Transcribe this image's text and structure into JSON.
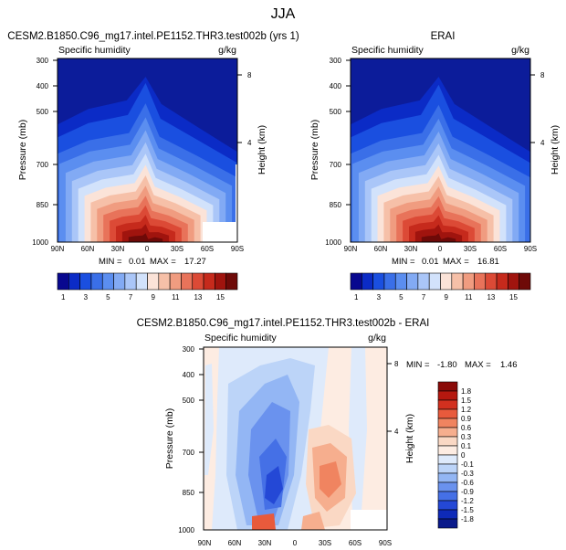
{
  "figure_title": "JJA",
  "chart_data": [
    {
      "type": "contour",
      "title": "CESM2.B1850.C96_mg17.intel.PE1152.THR3.test002b (yrs 1)",
      "left_label": "Specific humidity",
      "units": "g/kg",
      "ylabel": "Pressure (mb)",
      "ylabel_right": "Height (km)",
      "x_ticks": [
        "90N",
        "60N",
        "30N",
        "0",
        "30S",
        "60S",
        "90S"
      ],
      "y_ticks": [
        "300",
        "400",
        "500",
        "700",
        "850",
        "1000"
      ],
      "height_ticks": [
        "8",
        "4"
      ],
      "stats": {
        "min_label": "MIN =",
        "min": "0.01",
        "max_label": "MAX =",
        "max": "17.27"
      },
      "peak_value": 17.27
    },
    {
      "type": "contour",
      "title": "ERAI",
      "left_label": "Specific humidity",
      "units": "g/kg",
      "ylabel": "Pressure (mb)",
      "ylabel_right": "Height (km)",
      "x_ticks": [
        "90N",
        "60N",
        "30N",
        "0",
        "30S",
        "60S",
        "90S"
      ],
      "y_ticks": [
        "300",
        "400",
        "500",
        "700",
        "850",
        "1000"
      ],
      "height_ticks": [
        "8",
        "4"
      ],
      "stats": {
        "min_label": "MIN =",
        "min": "0.01",
        "max_label": "MAX =",
        "max": "16.81"
      },
      "peak_value": 16.81
    },
    {
      "type": "contour",
      "title": "CESM2.B1850.C96_mg17.intel.PE1152.THR3.test002b - ERAI",
      "left_label": "Specific humidity",
      "units": "g/kg",
      "ylabel": "Pressure (mb)",
      "ylabel_right": "Height (km)",
      "x_ticks": [
        "90N",
        "60N",
        "30N",
        "0",
        "30S",
        "60S",
        "90S"
      ],
      "y_ticks": [
        "300",
        "400",
        "500",
        "700",
        "850",
        "1000"
      ],
      "height_ticks": [
        "8",
        "4"
      ],
      "stats": {
        "min_label": "MIN =",
        "min": "-1.80",
        "max_label": "MAX =",
        "max": "1.46"
      }
    }
  ],
  "colorbar_top": {
    "labels": [
      "1",
      "3",
      "5",
      "7",
      "9",
      "11",
      "13",
      "15"
    ],
    "colors": [
      "#08088f",
      "#0b2bc6",
      "#1a4fe0",
      "#3a6fe8",
      "#5b8ef0",
      "#82aaf4",
      "#aac6f8",
      "#d2e2fb",
      "#fbe3d8",
      "#f6c0a8",
      "#f09c80",
      "#e8735a",
      "#dc4a36",
      "#c62a1c",
      "#a0140e",
      "#6e0a08"
    ]
  },
  "colorbar_diff": {
    "labels": [
      "1.8",
      "1.5",
      "1.2",
      "0.9",
      "0.6",
      "0.3",
      "0.1",
      "0",
      "-0.1",
      "-0.3",
      "-0.6",
      "-0.9",
      "-1.2",
      "-1.5",
      "-1.8"
    ],
    "colors": [
      "#8a0a08",
      "#b5180f",
      "#d2301f",
      "#e85a3c",
      "#f08460",
      "#f6ae8e",
      "#fad8c4",
      "#fdece2",
      "#deeafb",
      "#bcd4f8",
      "#93b6f4",
      "#6a92ee",
      "#4570e6",
      "#2448d6",
      "#0e2ab8",
      "#0a1a8a"
    ]
  }
}
